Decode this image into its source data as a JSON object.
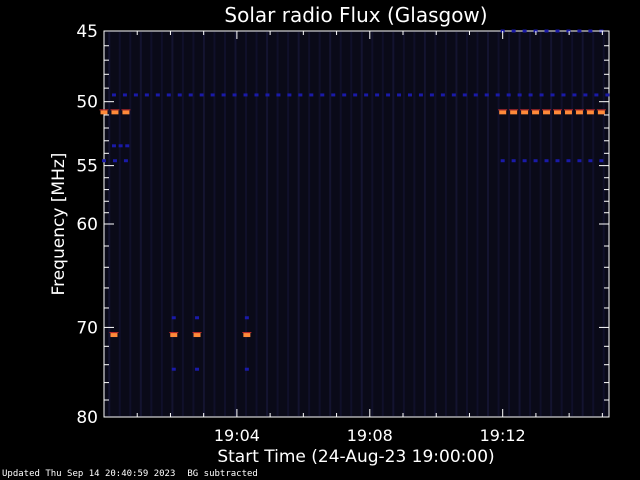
{
  "chart_data": {
    "type": "heatmap",
    "title": "Solar radio Flux (Glasgow)",
    "xlabel": "Start Time (24-Aug-23 19:00:00)",
    "ylabel": "Frequency [MHz]",
    "x_unit": "minutes after 19:00",
    "xlim": [
      0,
      15.2
    ],
    "ylim": [
      45,
      80
    ],
    "y_scale": "log",
    "y_inverted": true,
    "x_ticks": [
      {
        "value": 4,
        "label": "19:04"
      },
      {
        "value": 8,
        "label": "19:08"
      },
      {
        "value": 12,
        "label": "19:12"
      }
    ],
    "y_ticks": [
      {
        "value": 45,
        "label": "45"
      },
      {
        "value": 50,
        "label": "50"
      },
      {
        "value": 55,
        "label": "55"
      },
      {
        "value": 60,
        "label": "60"
      },
      {
        "value": 70,
        "label": "70"
      },
      {
        "value": 80,
        "label": "80"
      }
    ],
    "background_color": "#0a0a18",
    "colors": {
      "low": "#1a1aa8",
      "mid": "#c02a2a",
      "high": "#ff8a3a"
    },
    "features": [
      {
        "name": "persistent-line-49.5MHz",
        "freq": 49.5,
        "x_start": 0.3,
        "x_end": 15.2,
        "intensity": "low",
        "dashed": true
      },
      {
        "name": "burst-50.8MHz-start",
        "freq": 50.8,
        "x_start": 0.0,
        "x_end": 0.7,
        "intensity": "high",
        "dashed": true
      },
      {
        "name": "burst-50.8MHz-end",
        "freq": 50.8,
        "x_start": 12.0,
        "x_end": 15.0,
        "intensity": "high",
        "dashed": true
      },
      {
        "name": "line-45MHz-end",
        "freq": 45.0,
        "x_start": 12.0,
        "x_end": 15.0,
        "intensity": "low",
        "dashed": true
      },
      {
        "name": "line-54.6MHz-start",
        "freq": 54.6,
        "x_start": 0.0,
        "x_end": 0.7,
        "intensity": "low",
        "dashed": true
      },
      {
        "name": "line-54.6MHz-end",
        "freq": 54.6,
        "x_start": 12.0,
        "x_end": 15.0,
        "intensity": "low",
        "dashed": true
      },
      {
        "name": "line-53.4MHz-start",
        "freq": 53.4,
        "x_start": 0.3,
        "x_end": 0.7,
        "intensity": "low",
        "dashed": false
      },
      {
        "name": "burst-70.8MHz",
        "freq": 70.8,
        "points": [
          0.3,
          2.1,
          2.8,
          4.3
        ],
        "intensity": "high"
      },
      {
        "name": "line-69MHz",
        "freq": 69.0,
        "points": [
          2.1,
          2.8,
          4.3
        ],
        "intensity": "low"
      },
      {
        "name": "line-74.5MHz",
        "freq": 74.5,
        "points": [
          2.1,
          2.8,
          4.3
        ],
        "intensity": "low"
      }
    ]
  },
  "footer": {
    "updated": "Updated Thu Sep 14 20:40:59 2023",
    "note": "BG subtracted"
  }
}
